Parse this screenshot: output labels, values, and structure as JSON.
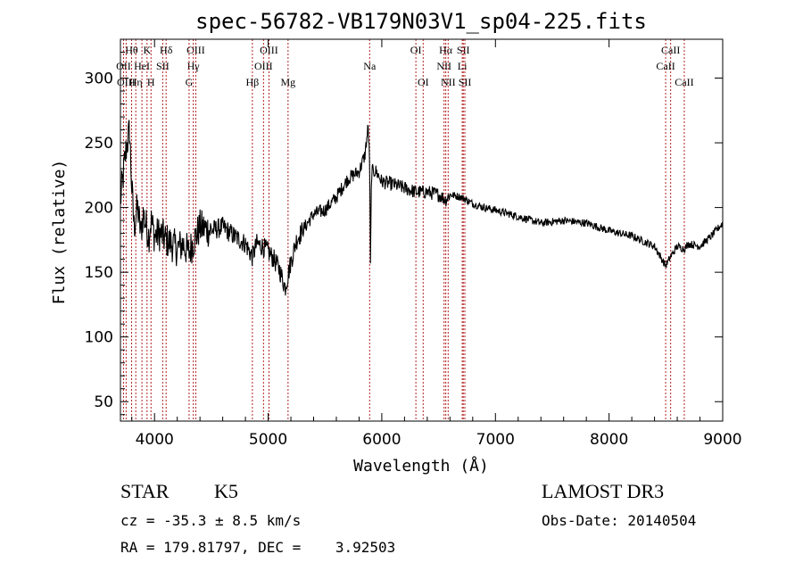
{
  "chart_data": {
    "type": "line",
    "title": "spec-56782-VB179N03V1_sp04-225.fits",
    "xlabel": "Wavelength (Å)",
    "ylabel": "Flux (relative)",
    "xlim": [
      3700,
      9000
    ],
    "ylim": [
      35,
      330
    ],
    "xticks": [
      4000,
      5000,
      6000,
      7000,
      8000,
      9000
    ],
    "yticks": [
      50,
      100,
      150,
      200,
      250,
      300
    ],
    "grid": false,
    "series": [
      {
        "name": "flux",
        "x": [
          3700,
          3750,
          3780,
          3800,
          3820,
          3850,
          3880,
          3900,
          3930,
          3950,
          3970,
          4000,
          4050,
          4100,
          4150,
          4200,
          4250,
          4300,
          4350,
          4400,
          4500,
          4600,
          4700,
          4800,
          4860,
          4900,
          4950,
          5000,
          5050,
          5100,
          5150,
          5180,
          5200,
          5250,
          5300,
          5400,
          5500,
          5600,
          5700,
          5800,
          5850,
          5880,
          5893,
          5900,
          5910,
          5950,
          6000,
          6100,
          6200,
          6300,
          6400,
          6500,
          6563,
          6600,
          6700,
          6800,
          6900,
          7000,
          7200,
          7400,
          7600,
          7800,
          8000,
          8200,
          8400,
          8498,
          8542,
          8600,
          8662,
          8700,
          8800,
          8900,
          9000
        ],
        "values": [
          205,
          245,
          260,
          215,
          185,
          200,
          180,
          195,
          185,
          178,
          190,
          178,
          180,
          175,
          172,
          168,
          172,
          165,
          175,
          185,
          182,
          185,
          178,
          172,
          162,
          172,
          170,
          166,
          160,
          152,
          138,
          150,
          158,
          175,
          182,
          195,
          198,
          208,
          222,
          228,
          240,
          262,
          235,
          155,
          228,
          228,
          220,
          218,
          215,
          212,
          212,
          210,
          206,
          210,
          208,
          203,
          200,
          198,
          193,
          188,
          190,
          188,
          182,
          178,
          170,
          155,
          162,
          170,
          168,
          172,
          170,
          178,
          188
        ]
      }
    ],
    "lines": [
      {
        "label": "Hθ",
        "wavelength": 3798,
        "row": 0
      },
      {
        "label": "OII",
        "wavelength": 3727,
        "row": 1
      },
      {
        "label": "OIII",
        "wavelength": 3750,
        "row": 2
      },
      {
        "label": "Hη",
        "wavelength": 3835,
        "row": 2
      },
      {
        "label": "HeI",
        "wavelength": 3889,
        "row": 1
      },
      {
        "label": "K",
        "wavelength": 3934,
        "row": 0
      },
      {
        "label": "H",
        "wavelength": 3969,
        "row": 2
      },
      {
        "label": "SII",
        "wavelength": 4072,
        "row": 1
      },
      {
        "label": "Hδ",
        "wavelength": 4102,
        "row": 0
      },
      {
        "label": "OIII",
        "wavelength": 4363,
        "row": 0
      },
      {
        "label": "Hγ",
        "wavelength": 4341,
        "row": 1
      },
      {
        "label": "G",
        "wavelength": 4304,
        "row": 2
      },
      {
        "label": "Hβ",
        "wavelength": 4861,
        "row": 2
      },
      {
        "label": "OIII",
        "wavelength": 5007,
        "row": 0
      },
      {
        "label": "OIII",
        "wavelength": 4959,
        "row": 1
      },
      {
        "label": "Mg",
        "wavelength": 5175,
        "row": 2
      },
      {
        "label": "Na",
        "wavelength": 5893,
        "row": 1
      },
      {
        "label": "OI",
        "wavelength": 6300,
        "row": 0
      },
      {
        "label": "OI",
        "wavelength": 6364,
        "row": 2
      },
      {
        "label": "Hα",
        "wavelength": 6563,
        "row": 0
      },
      {
        "label": "NII",
        "wavelength": 6548,
        "row": 1
      },
      {
        "label": "NII",
        "wavelength": 6584,
        "row": 2
      },
      {
        "label": "SII",
        "wavelength": 6717,
        "row": 0
      },
      {
        "label": "Li",
        "wavelength": 6708,
        "row": 1
      },
      {
        "label": "SII",
        "wavelength": 6731,
        "row": 2
      },
      {
        "label": "CaII",
        "wavelength": 8542,
        "row": 0
      },
      {
        "label": "CaII",
        "wavelength": 8498,
        "row": 1
      },
      {
        "label": "CaII",
        "wavelength": 8662,
        "row": 2
      }
    ]
  },
  "info": {
    "class": "STAR",
    "subclass": "K5",
    "survey": "LAMOST DR3",
    "cz": "cz = -35.3 ± 8.5 km/s",
    "obs_date": "Obs-Date: 20140504",
    "radec": "RA = 179.81797, DEC =    3.92503"
  },
  "colors": {
    "line_marker": "#b22222",
    "spectrum": "#000000"
  }
}
